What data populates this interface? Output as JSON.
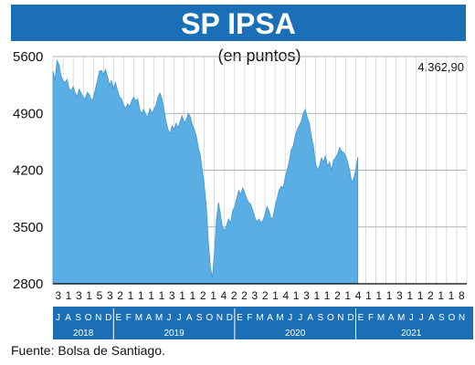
{
  "chart_data": {
    "type": "area",
    "title": "SP IPSA",
    "subtitle": "(en puntos)",
    "last_value_label": "4.362,90",
    "source": "Fuente: Bolsa de Santiago.",
    "ylim": [
      2800,
      5600
    ],
    "yticks": [
      "5600",
      "4900",
      "4200",
      "3500",
      "2800"
    ],
    "grid": true,
    "day_labels": [
      "3",
      "1",
      "3",
      "1",
      "5",
      "3",
      "2",
      "1",
      "1",
      "1",
      "1",
      "3",
      "1",
      "1",
      "2",
      "1",
      "4",
      "2",
      "2",
      "3",
      "2",
      "1",
      "4",
      "1",
      "3",
      "1",
      "1",
      "2",
      "1",
      "4",
      "1",
      "1",
      "1",
      "3",
      "1",
      "1",
      "2",
      "1",
      "1",
      "8"
    ],
    "month_labels": [
      "J",
      "A",
      "S",
      "O",
      "N",
      "D",
      "E",
      "F",
      "M",
      "A",
      "M",
      "J",
      "J",
      "A",
      "S",
      "O",
      "N",
      "D",
      "E",
      "F",
      "M",
      "A",
      "M",
      "J",
      "J",
      "A",
      "S",
      "O",
      "N",
      "D",
      "E",
      "F",
      "M",
      "A",
      "M",
      "J",
      "J",
      "A",
      "S",
      "O",
      "N"
    ],
    "years": [
      {
        "label": "2018",
        "start_month": 0,
        "end_month": 6
      },
      {
        "label": "2019",
        "start_month": 6,
        "end_month": 18
      },
      {
        "label": "2020",
        "start_month": 18,
        "end_month": 30
      },
      {
        "label": "2021",
        "start_month": 30,
        "end_month": 41
      }
    ],
    "series": [
      {
        "points": [
          [
            0,
            5420
          ],
          [
            0.2,
            5310
          ],
          [
            0.4,
            5550
          ],
          [
            0.6,
            5500
          ],
          [
            0.8,
            5360
          ],
          [
            1.0,
            5300
          ],
          [
            1.2,
            5280
          ],
          [
            1.4,
            5320
          ],
          [
            1.6,
            5200
          ],
          [
            1.8,
            5180
          ],
          [
            2.0,
            5230
          ],
          [
            2.2,
            5150
          ],
          [
            2.4,
            5110
          ],
          [
            2.6,
            5200
          ],
          [
            2.8,
            5150
          ],
          [
            3.0,
            5100
          ],
          [
            3.2,
            5080
          ],
          [
            3.4,
            5160
          ],
          [
            3.6,
            5130
          ],
          [
            3.8,
            5060
          ],
          [
            4.0,
            5090
          ],
          [
            4.2,
            5200
          ],
          [
            4.4,
            5300
          ],
          [
            4.6,
            5420
          ],
          [
            4.8,
            5430
          ],
          [
            5.0,
            5380
          ],
          [
            5.2,
            5440
          ],
          [
            5.4,
            5350
          ],
          [
            5.6,
            5250
          ],
          [
            5.8,
            5300
          ],
          [
            6.0,
            5200
          ],
          [
            6.2,
            5280
          ],
          [
            6.4,
            5180
          ],
          [
            6.6,
            5100
          ],
          [
            6.8,
            5080
          ],
          [
            7.0,
            5000
          ],
          [
            7.2,
            4960
          ],
          [
            7.4,
            5020
          ],
          [
            7.6,
            4980
          ],
          [
            7.8,
            5060
          ],
          [
            8.0,
            5100
          ],
          [
            8.2,
            5050
          ],
          [
            8.4,
            5080
          ],
          [
            8.6,
            4940
          ],
          [
            8.8,
            4900
          ],
          [
            9.0,
            4950
          ],
          [
            9.2,
            4880
          ],
          [
            9.4,
            4860
          ],
          [
            9.6,
            4960
          ],
          [
            9.8,
            4900
          ],
          [
            10.0,
            4950
          ],
          [
            10.2,
            5000
          ],
          [
            10.4,
            5100
          ],
          [
            10.6,
            5150
          ],
          [
            10.8,
            5080
          ],
          [
            11.0,
            4950
          ],
          [
            11.2,
            4800
          ],
          [
            11.4,
            4700
          ],
          [
            11.6,
            4650
          ],
          [
            11.8,
            4750
          ],
          [
            12.0,
            4700
          ],
          [
            12.2,
            4780
          ],
          [
            12.4,
            4720
          ],
          [
            12.6,
            4800
          ],
          [
            12.8,
            4870
          ],
          [
            13.0,
            4780
          ],
          [
            13.2,
            4820
          ],
          [
            13.4,
            4900
          ],
          [
            13.6,
            4860
          ],
          [
            13.8,
            4760
          ],
          [
            14.0,
            4700
          ],
          [
            14.2,
            4620
          ],
          [
            14.4,
            4480
          ],
          [
            14.6,
            4380
          ],
          [
            14.8,
            4200
          ],
          [
            15.0,
            4000
          ],
          [
            15.2,
            3750
          ],
          [
            15.4,
            3300
          ],
          [
            15.6,
            3000
          ],
          [
            15.8,
            2880
          ],
          [
            16.0,
            3200
          ],
          [
            16.2,
            3600
          ],
          [
            16.4,
            3800
          ],
          [
            16.6,
            3650
          ],
          [
            16.8,
            3500
          ],
          [
            17.0,
            3450
          ],
          [
            17.2,
            3520
          ],
          [
            17.4,
            3600
          ],
          [
            17.6,
            3550
          ],
          [
            17.8,
            3700
          ],
          [
            18.0,
            3750
          ],
          [
            18.2,
            3850
          ],
          [
            18.4,
            3950
          ],
          [
            18.6,
            3900
          ],
          [
            18.8,
            3980
          ],
          [
            19.0,
            3920
          ],
          [
            19.2,
            3850
          ],
          [
            19.4,
            3800
          ],
          [
            19.6,
            3780
          ],
          [
            19.8,
            3700
          ],
          [
            20.0,
            3620
          ],
          [
            20.2,
            3560
          ],
          [
            20.4,
            3600
          ],
          [
            20.6,
            3550
          ],
          [
            20.8,
            3580
          ],
          [
            21.0,
            3650
          ],
          [
            21.2,
            3750
          ],
          [
            21.4,
            3700
          ],
          [
            21.6,
            3600
          ],
          [
            21.8,
            3620
          ],
          [
            22.0,
            3750
          ],
          [
            22.2,
            3850
          ],
          [
            22.4,
            3950
          ],
          [
            22.6,
            4000
          ],
          [
            22.8,
            3980
          ],
          [
            23.0,
            4100
          ],
          [
            23.2,
            4200
          ],
          [
            23.4,
            4300
          ],
          [
            23.6,
            4450
          ],
          [
            23.8,
            4500
          ],
          [
            24.0,
            4620
          ],
          [
            24.2,
            4700
          ],
          [
            24.4,
            4750
          ],
          [
            24.6,
            4800
          ],
          [
            24.8,
            4900
          ],
          [
            25.0,
            4950
          ],
          [
            25.2,
            4850
          ],
          [
            25.4,
            4780
          ],
          [
            25.6,
            4620
          ],
          [
            25.8,
            4500
          ],
          [
            26.0,
            4300
          ],
          [
            26.2,
            4200
          ],
          [
            26.4,
            4250
          ],
          [
            26.6,
            4350
          ],
          [
            26.8,
            4300
          ],
          [
            27.0,
            4380
          ],
          [
            27.2,
            4250
          ],
          [
            27.4,
            4300
          ],
          [
            27.6,
            4200
          ],
          [
            27.8,
            4330
          ],
          [
            28.0,
            4350
          ],
          [
            28.2,
            4400
          ],
          [
            28.4,
            4480
          ],
          [
            28.6,
            4430
          ],
          [
            28.8,
            4420
          ],
          [
            29.0,
            4380
          ],
          [
            29.2,
            4300
          ],
          [
            29.4,
            4200
          ],
          [
            29.6,
            4050
          ],
          [
            29.8,
            4100
          ],
          [
            30.0,
            4200
          ],
          [
            30.2,
            4362.9
          ]
        ]
      }
    ]
  }
}
